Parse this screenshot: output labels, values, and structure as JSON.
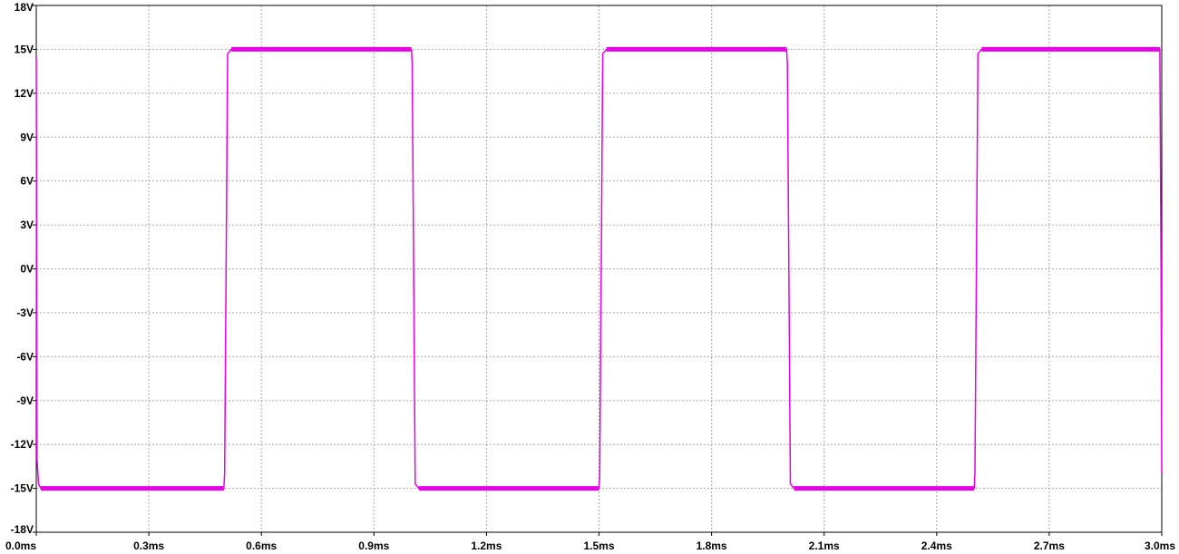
{
  "chart_data": {
    "type": "line",
    "title": "",
    "xlabel": "",
    "ylabel": "",
    "xlim": [
      0.0,
      3.0
    ],
    "ylim": [
      -18,
      18
    ],
    "grid": true,
    "x_ticks": [
      {
        "value": 0.0,
        "label": "0.0ms"
      },
      {
        "value": 0.3,
        "label": "0.3ms"
      },
      {
        "value": 0.6,
        "label": "0.6ms"
      },
      {
        "value": 0.9,
        "label": "0.9ms"
      },
      {
        "value": 1.2,
        "label": "1.2ms"
      },
      {
        "value": 1.5,
        "label": "1.5ms"
      },
      {
        "value": 1.8,
        "label": "1.8ms"
      },
      {
        "value": 2.1,
        "label": "2.1ms"
      },
      {
        "value": 2.4,
        "label": "2.4ms"
      },
      {
        "value": 2.7,
        "label": "2.7ms"
      },
      {
        "value": 3.0,
        "label": "3.0ms"
      }
    ],
    "y_ticks": [
      {
        "value": 18,
        "label": "18V"
      },
      {
        "value": 15,
        "label": "15V"
      },
      {
        "value": 12,
        "label": "12V"
      },
      {
        "value": 9,
        "label": "9V"
      },
      {
        "value": 6,
        "label": "6V"
      },
      {
        "value": 3,
        "label": "3V"
      },
      {
        "value": 0,
        "label": "0V"
      },
      {
        "value": -3,
        "label": "-3V"
      },
      {
        "value": -6,
        "label": "-6V"
      },
      {
        "value": -9,
        "label": "-9V"
      },
      {
        "value": -12,
        "label": "-12V"
      },
      {
        "value": -15,
        "label": "-15V"
      },
      {
        "value": -18,
        "label": "-18V"
      }
    ],
    "series": [
      {
        "color": "#e600e6",
        "x": [
          0.0,
          0.002,
          0.006,
          0.012,
          0.5,
          0.502,
          0.51,
          0.52,
          1.0,
          1.002,
          1.01,
          1.02,
          1.5,
          1.502,
          1.51,
          1.52,
          2.0,
          2.002,
          2.01,
          2.02,
          2.5,
          2.502,
          2.51,
          2.52,
          2.995,
          2.998,
          3.0
        ],
        "y": [
          14.5,
          -13.0,
          -14.7,
          -15.0,
          -15.0,
          -14.0,
          14.7,
          15.0,
          15.0,
          14.0,
          -14.7,
          -15.0,
          -15.0,
          -14.0,
          14.7,
          15.0,
          15.0,
          14.0,
          -14.7,
          -15.0,
          -15.0,
          -14.0,
          14.7,
          15.0,
          15.0,
          0.0,
          -14.0
        ]
      }
    ]
  }
}
